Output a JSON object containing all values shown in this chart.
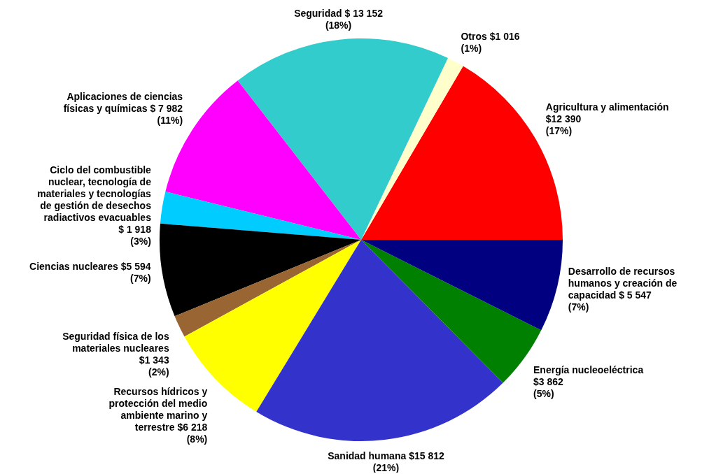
{
  "chart_data": {
    "type": "pie",
    "categories": [
      "Agricultura y alimentación",
      "Otros",
      "Seguridad",
      "Aplicaciones de ciencias físicas y químicas",
      "Ciclo del combustible nuclear, tecnología de materiales y tecnologías de gestión de desechos radiactivos evacuables",
      "Ciencias nucleares",
      "Seguridad física de los materiales nucleares",
      "Recursos hídricos y protección del medio ambiente marino y terrestre",
      "Sanidad humana",
      "Energía nucleoeléctrica",
      "Desarrollo de recursos humanos y creación de capacidad"
    ],
    "values": [
      12390,
      1016,
      13152,
      7982,
      1918,
      5594,
      1343,
      6218,
      15812,
      3862,
      5547
    ],
    "colors": [
      "#ff0000",
      "#ffffcc",
      "#33cccc",
      "#ff00ff",
      "#00ccff",
      "#000000",
      "#996633",
      "#ffff00",
      "#3333cc",
      "#008000",
      "#000080"
    ],
    "value_labels": [
      "$12 390 (17%)",
      "$1 016 (1%)",
      "$ 13 152 (18%)",
      "$ 7 982 (11%)",
      "$ 1 918 (3%)",
      "$5 594 (7%)",
      "$1 343 (2%)",
      "$6 218 (8%)",
      "$15 812 (21%)",
      "$3 862 (5%)",
      "$ 5 547 (7%)"
    ]
  }
}
